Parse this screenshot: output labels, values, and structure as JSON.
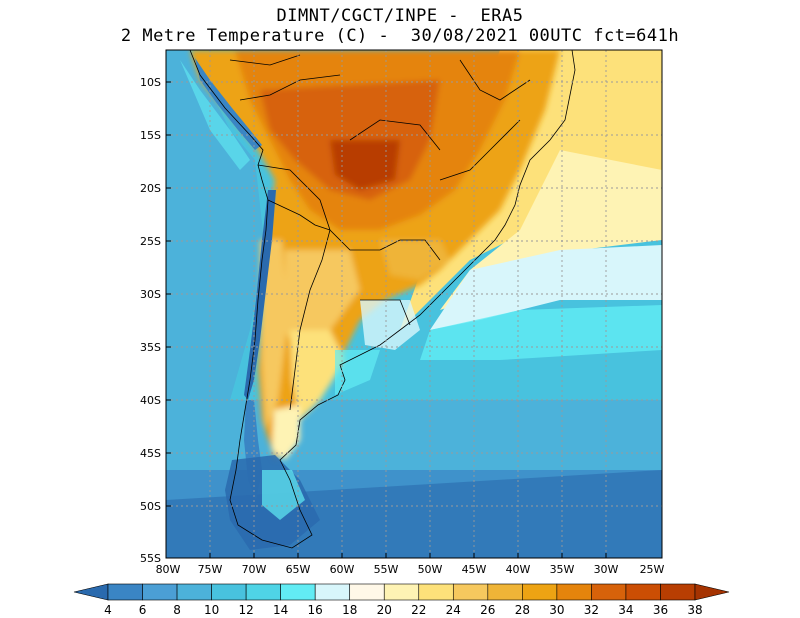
{
  "title": {
    "line1": "DIMNT/CGCT/INPE -  ERA5",
    "line2": "2 Metre Temperature (C) -  30/08/2021 00UTC fct=641h"
  },
  "map": {
    "lat_labels": [
      "10S",
      "15S",
      "20S",
      "25S",
      "30S",
      "35S",
      "40S",
      "45S",
      "50S",
      "55S"
    ],
    "lon_labels": [
      "80W",
      "75W",
      "70W",
      "65W",
      "60W",
      "55W",
      "50W",
      "45W",
      "40W",
      "35W",
      "30W",
      "25W"
    ]
  },
  "colorbar": {
    "labels": [
      "4",
      "6",
      "8",
      "10",
      "12",
      "14",
      "16",
      "18",
      "20",
      "22",
      "24",
      "26",
      "28",
      "30",
      "32",
      "34",
      "36",
      "38"
    ],
    "colors": [
      "#2a6aae",
      "#3a85c4",
      "#4b9fd5",
      "#4cb2da",
      "#48c2de",
      "#4fd4e6",
      "#62ecf4",
      "#d8f6fb",
      "#fff8e8",
      "#fef3b4",
      "#fde17a",
      "#f6c85e",
      "#efb437",
      "#eda313",
      "#e5840c",
      "#d7620a",
      "#cb4e04",
      "#b83e02",
      "#a53301"
    ]
  }
}
